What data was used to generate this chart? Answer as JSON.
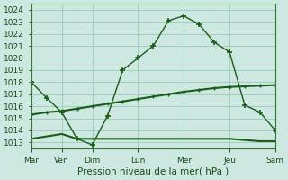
{
  "title": "",
  "xlabel": "Pression niveau de la mer( hPa )",
  "bg_color": "#cce8e0",
  "grid_color": "#99ccbb",
  "line_color": "#1a5c1a",
  "spine_color": "#2d7a2d",
  "xlim": [
    0,
    16
  ],
  "ylim": [
    1012.5,
    1024.5
  ],
  "yticks": [
    1013,
    1014,
    1015,
    1016,
    1017,
    1018,
    1019,
    1020,
    1021,
    1022,
    1023,
    1024
  ],
  "xtick_positions": [
    0,
    2,
    4,
    7,
    10,
    13,
    16
  ],
  "xtick_labels": [
    "Mar",
    "Ven",
    "Dim",
    "Lun",
    "Mer",
    "Jeu",
    "Sam"
  ],
  "line1_x": [
    0,
    1,
    2,
    3,
    4,
    5,
    6,
    7,
    8,
    9,
    10,
    11,
    12,
    13,
    14,
    15,
    16
  ],
  "line1_y": [
    1018.0,
    1016.7,
    1015.5,
    1013.3,
    1012.8,
    1015.2,
    1019.0,
    1020.0,
    1021.0,
    1023.1,
    1023.5,
    1022.8,
    1021.3,
    1020.5,
    1016.1,
    1015.5,
    1014.0
  ],
  "line2_x": [
    0,
    1,
    2,
    3,
    4,
    5,
    6,
    7,
    8,
    9,
    10,
    11,
    12,
    13,
    14,
    15,
    16
  ],
  "line2_y": [
    1015.3,
    1015.5,
    1015.6,
    1015.8,
    1016.0,
    1016.2,
    1016.4,
    1016.6,
    1016.8,
    1017.0,
    1017.2,
    1017.35,
    1017.5,
    1017.6,
    1017.65,
    1017.7,
    1017.75
  ],
  "line3_x": [
    0,
    2,
    3,
    4,
    5,
    6,
    7,
    8,
    9,
    10,
    11,
    12,
    13,
    14,
    15,
    16
  ],
  "line3_y": [
    1013.3,
    1013.7,
    1013.3,
    1013.3,
    1013.3,
    1013.3,
    1013.3,
    1013.3,
    1013.3,
    1013.3,
    1013.3,
    1013.3,
    1013.3,
    1013.2,
    1013.1,
    1013.1
  ]
}
